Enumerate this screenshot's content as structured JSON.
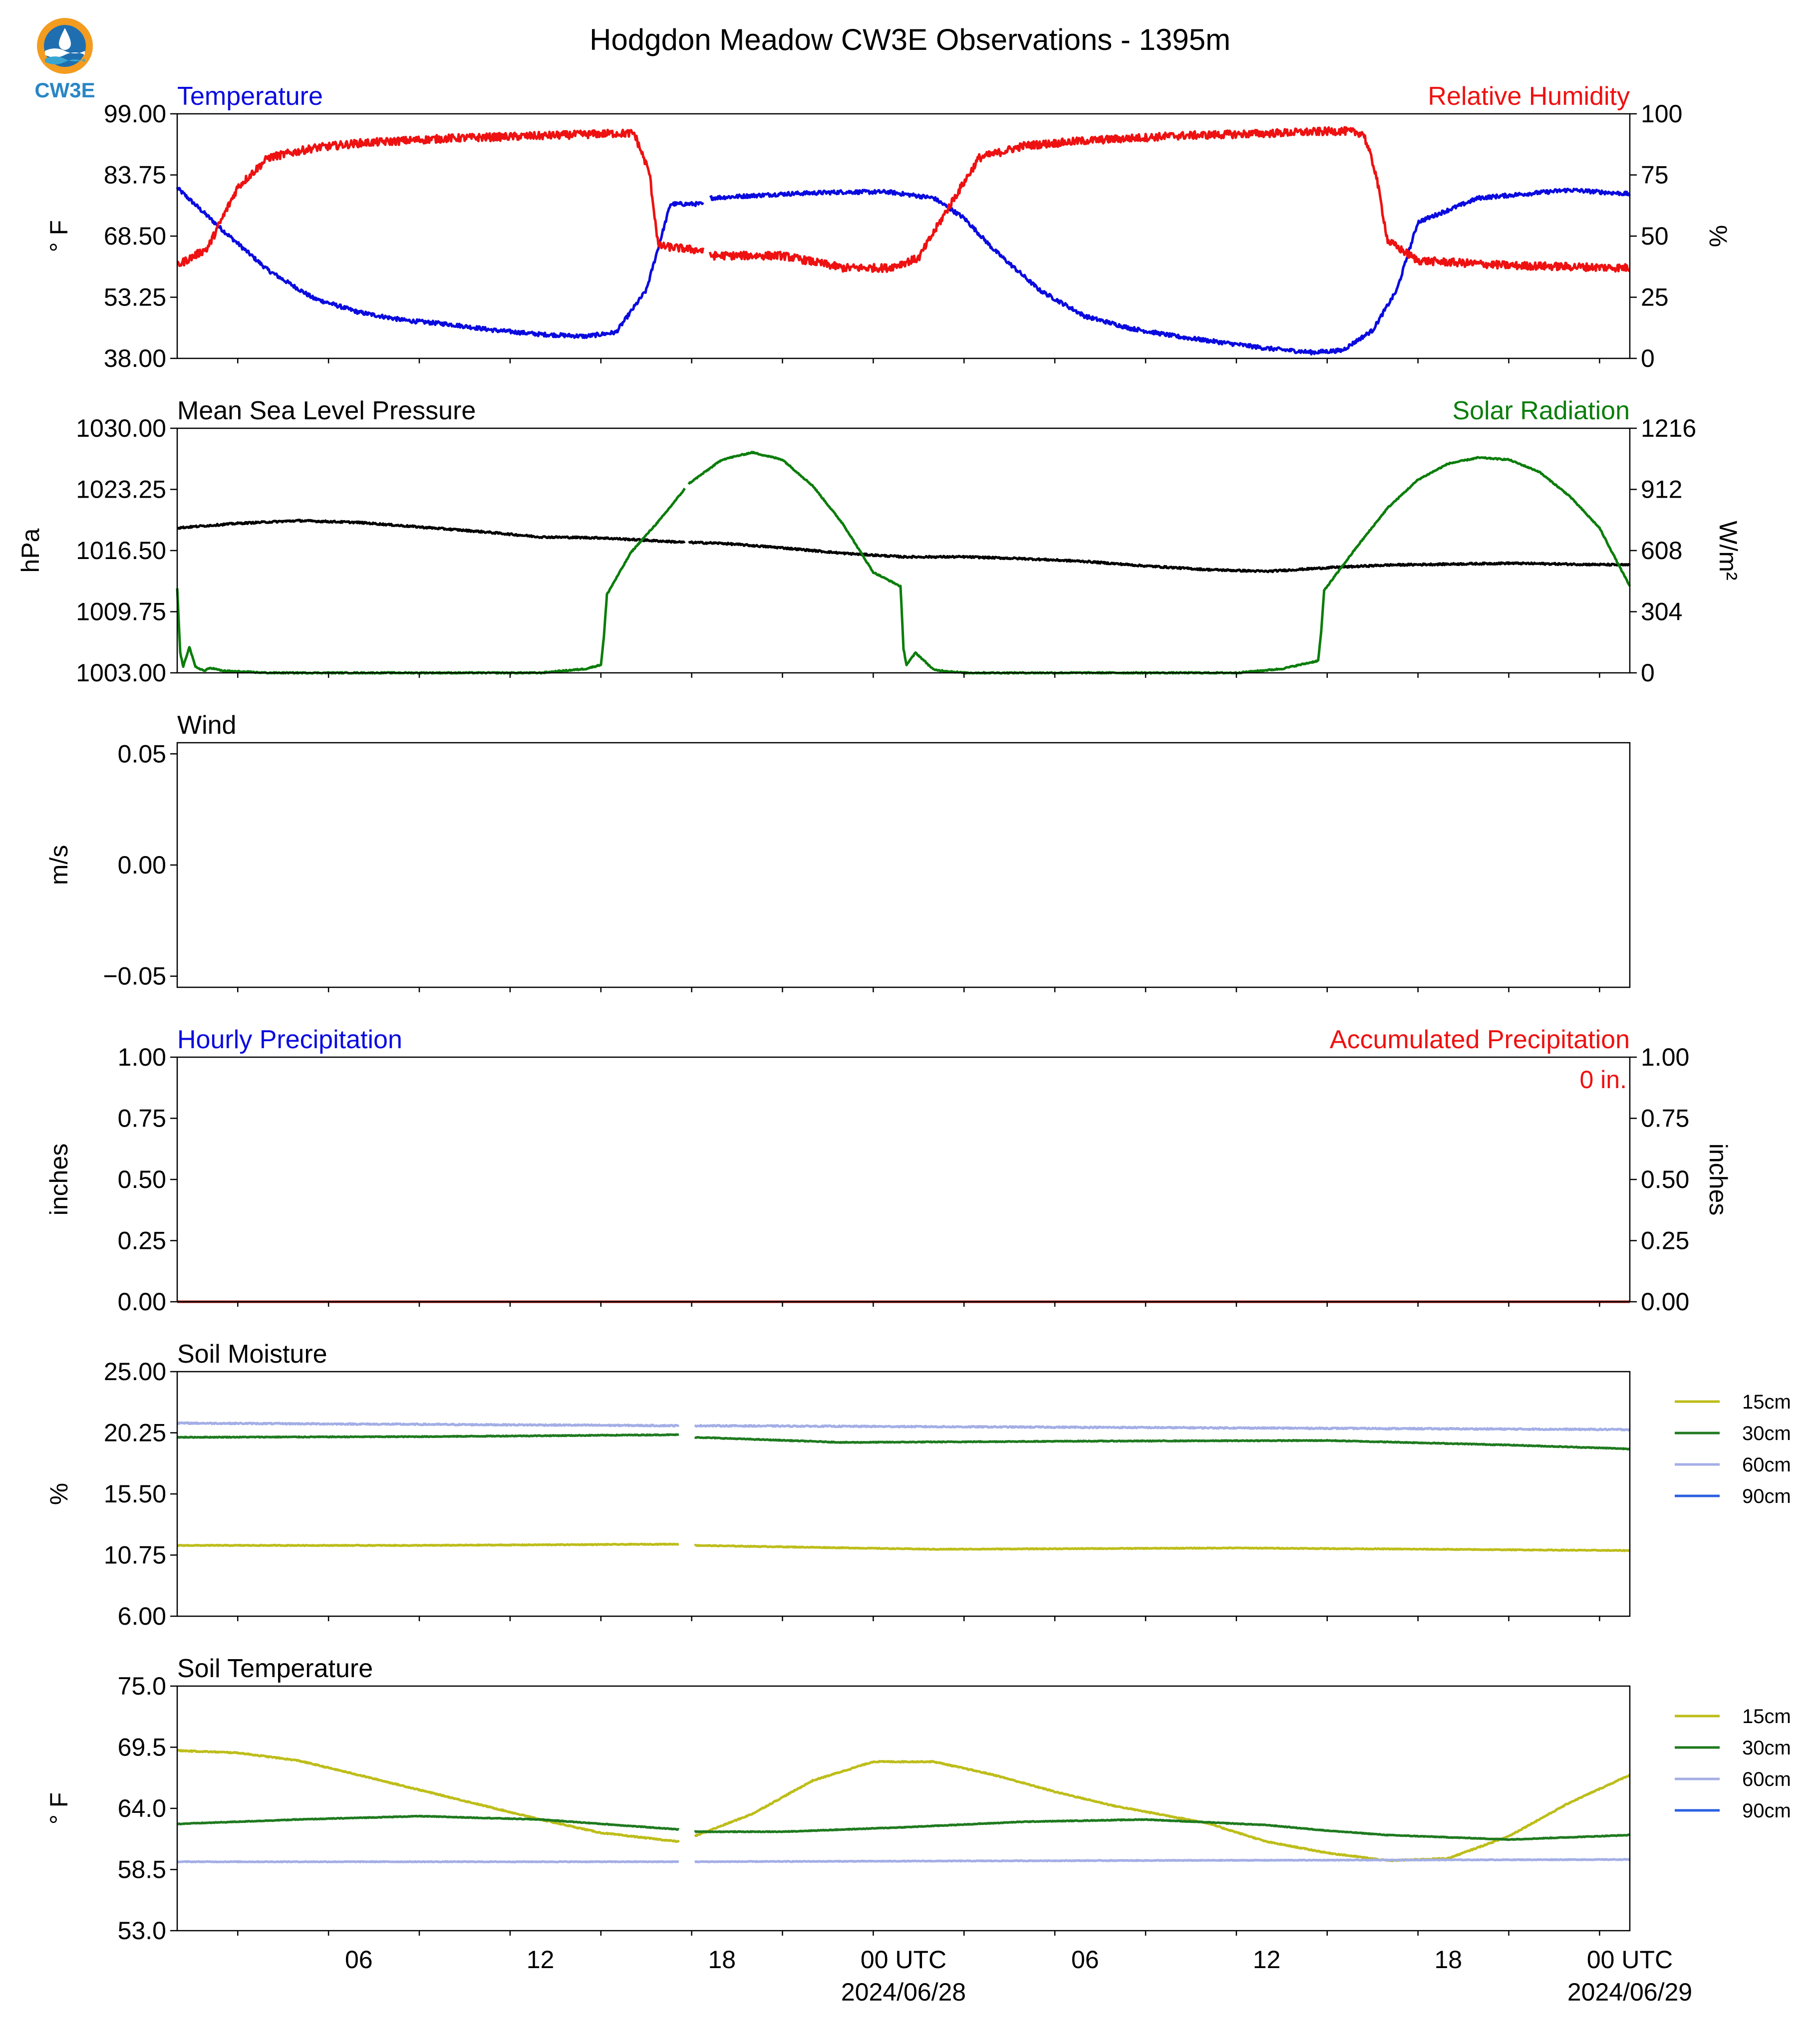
{
  "title": "Hodgdon Meadow CW3E Observations - 1395m",
  "logo": {
    "text": "CW3E",
    "colors": [
      "#f39c1f",
      "#1f6fb0",
      "#3aa6d0"
    ]
  },
  "x_axis": {
    "hours_total": 48.0,
    "hour_start_offset": 20.0,
    "tick_labels": [
      "06",
      "12",
      "18",
      "00 UTC",
      "06",
      "12",
      "18",
      "00 UTC"
    ],
    "tick_hours": [
      6,
      12,
      18,
      24,
      30,
      36,
      42,
      48
    ],
    "date_labels": [
      "2024/06/28",
      "2024/06/29"
    ],
    "date_label_hours": [
      24,
      48
    ]
  },
  "chart_data": [
    {
      "type": "line",
      "left_title": "Temperature",
      "right_title": "Relative Humidity",
      "ylabel": "° F",
      "ylabel_right": "%",
      "ylim": [
        38.0,
        99.0
      ],
      "ylim_right": [
        0,
        100
      ],
      "yticks": [
        "38.00",
        "53.25",
        "68.50",
        "83.75",
        "99.00"
      ],
      "yticks_right": [
        "0",
        "25",
        "50",
        "75",
        "100"
      ],
      "series": [
        {
          "axis": "left",
          "color": "#0a0adf",
          "noise": 0.5,
          "gap": [
            17.4,
            17.6
          ],
          "x": [
            0,
            1.5,
            3,
            4.5,
            6,
            7.5,
            9,
            10.5,
            12,
            13.5,
            14.5,
            15.5,
            16.3,
            17.4,
            17.6,
            20,
            22,
            23.5,
            25,
            26,
            27,
            28.5,
            30,
            31.5,
            33,
            34.5,
            36,
            37.5,
            38.5,
            39.5,
            40.3,
            41,
            43,
            46,
            48
          ],
          "y": [
            80.5,
            70,
            60,
            53,
            49.5,
            47.5,
            46.5,
            45,
            44,
            43.5,
            44.5,
            55,
            76.5,
            76.5,
            78,
            79,
            79.5,
            79.5,
            78,
            73,
            65,
            55,
            48.5,
            45.5,
            43.5,
            42,
            40.5,
            39.5,
            40,
            45,
            55,
            72,
            78,
            80,
            79
          ]
        },
        {
          "axis": "right",
          "color": "#ee1111",
          "noise": 1.6,
          "gap": [
            17.4,
            17.6
          ],
          "x": [
            0,
            1,
            2,
            3,
            4.5,
            6,
            9,
            12,
            14.5,
            15.1,
            15.6,
            15.9,
            17.4,
            17.6,
            20,
            22,
            23.5,
            24.5,
            25.5,
            26.5,
            28,
            30,
            33,
            36,
            38.5,
            39.2,
            39.6,
            40.0,
            41,
            44,
            48
          ],
          "y": [
            38,
            45,
            70,
            82,
            86,
            88,
            90,
            91,
            92,
            92,
            76,
            46,
            44,
            42,
            42,
            37,
            37,
            41,
            62,
            82,
            87,
            89,
            91,
            92,
            93,
            92,
            76,
            48,
            40,
            38,
            37
          ]
        }
      ]
    },
    {
      "type": "line",
      "left_title": "Mean Sea Level Pressure",
      "right_title": "Solar Radiation",
      "ylabel": "hPa",
      "ylabel_right": "W/m²",
      "ylim": [
        1003.0,
        1030.0
      ],
      "ylim_right": [
        0,
        1216
      ],
      "yticks": [
        "1003.00",
        "1009.75",
        "1016.50",
        "1023.25",
        "1030.00"
      ],
      "yticks_right": [
        "0",
        "304",
        "608",
        "912",
        "1216"
      ],
      "series": [
        {
          "axis": "left",
          "color": "#000000",
          "noise": 0.1,
          "gap": [
            16.8,
            16.9
          ],
          "x": [
            0,
            2,
            4,
            6,
            8,
            10,
            12,
            14,
            16.8,
            16.9,
            18,
            20,
            22,
            24,
            26,
            28,
            30,
            32,
            34,
            36,
            38,
            40,
            42,
            44,
            46,
            48
          ],
          "y": [
            1019,
            1019.5,
            1019.8,
            1019.6,
            1019.1,
            1018.6,
            1018,
            1017.9,
            1017.4,
            1017.4,
            1017.3,
            1016.8,
            1016.2,
            1015.8,
            1015.8,
            1015.6,
            1015.3,
            1014.8,
            1014.4,
            1014.2,
            1014.6,
            1014.9,
            1015,
            1015.1,
            1015,
            1014.9
          ]
        },
        {
          "axis": "right",
          "color": "#0b7d0b",
          "noise": 3,
          "gap": [
            16.8,
            16.9
          ],
          "x": [
            0,
            0.1,
            0.2,
            0.4,
            0.6,
            0.9,
            1.1,
            1.5,
            3,
            6,
            9,
            12,
            13.5,
            14,
            14.1,
            14.2,
            15,
            16,
            16.8,
            16.9,
            18,
            19,
            20,
            21,
            22,
            23,
            23.9,
            24,
            24.1,
            24.4,
            25,
            26,
            28,
            32,
            35,
            36.5,
            37.7,
            37.8,
            37.9,
            39,
            40,
            41,
            42,
            43,
            44,
            45,
            46,
            47,
            48
          ],
          "y": [
            420,
            100,
            30,
            130,
            30,
            10,
            25,
            10,
            0,
            0,
            0,
            0,
            20,
            40,
            180,
            390,
            600,
            770,
            920,
            940,
            1060,
            1096,
            1060,
            930,
            740,
            500,
            430,
            120,
            40,
            100,
            15,
            0,
            0,
            0,
            0,
            20,
            60,
            200,
            410,
            630,
            820,
            960,
            1040,
            1070,
            1060,
            1000,
            880,
            720,
            430
          ]
        }
      ]
    },
    {
      "type": "line",
      "left_title": "Wind",
      "right_title": "",
      "ylabel": "m/s",
      "ylim": [
        -0.055,
        0.055
      ],
      "yticks": [
        "−0.05",
        "0.00",
        "0.05"
      ],
      "ytick_values": [
        -0.05,
        0,
        0.05
      ],
      "series": []
    },
    {
      "type": "line",
      "left_title": "Hourly Precipitation",
      "right_title": "Accumulated Precipitation",
      "ylabel": "inches",
      "ylabel_right": "inches",
      "ylim": [
        0,
        1
      ],
      "ylim_right": [
        0,
        1
      ],
      "yticks": [
        "0.00",
        "0.25",
        "0.50",
        "0.75",
        "1.00"
      ],
      "yticks_right": [
        "0.00",
        "0.25",
        "0.50",
        "0.75",
        "1.00"
      ],
      "annotation": "0 in.",
      "series": [
        {
          "axis": "right",
          "color": "#aa1111",
          "x": [
            0,
            48
          ],
          "y": [
            0,
            0
          ]
        }
      ]
    },
    {
      "type": "line",
      "left_title": "Soil Moisture",
      "right_title": "",
      "ylabel": "%",
      "ylim": [
        6.0,
        25.0
      ],
      "yticks": [
        "6.00",
        "10.75",
        "15.50",
        "20.25",
        "25.00"
      ],
      "legend": [
        "15cm",
        "30cm",
        "60cm",
        "90cm"
      ],
      "legend_colors": [
        "#bdbd1a",
        "#1f7a1f",
        "#a3aee6",
        "#2a5fe0"
      ],
      "series": [
        {
          "name": "15cm",
          "color": "#bdbd1a",
          "noise": 0.03,
          "gap": [
            16.6,
            17.1
          ],
          "x": [
            0,
            8,
            16.6,
            17.1,
            25,
            35,
            48
          ],
          "y": [
            11.5,
            11.5,
            11.6,
            11.5,
            11.2,
            11.3,
            11.1
          ]
        },
        {
          "name": "30cm",
          "color": "#1f7a1f",
          "noise": 0.03,
          "gap": [
            16.6,
            17.1
          ],
          "x": [
            0,
            8,
            16.6,
            17.1,
            22,
            30,
            38,
            44,
            48
          ],
          "y": [
            19.9,
            19.95,
            20.1,
            19.9,
            19.5,
            19.6,
            19.65,
            19.3,
            19.0
          ]
        },
        {
          "name": "60cm",
          "color": "#a3aee6",
          "noise": 0.05,
          "gap": [
            16.6,
            17.1
          ],
          "x": [
            0,
            16.6,
            17.1,
            48
          ],
          "y": [
            21.0,
            20.8,
            20.8,
            20.5
          ]
        }
      ]
    },
    {
      "type": "line",
      "left_title": "Soil Temperature",
      "right_title": "",
      "ylabel": "° F",
      "ylim": [
        53.0,
        75.0
      ],
      "yticks": [
        "53.0",
        "58.5",
        "64.0",
        "69.5",
        "75.0"
      ],
      "legend": [
        "15cm",
        "30cm",
        "60cm",
        "90cm"
      ],
      "legend_colors": [
        "#bdbd1a",
        "#1f7a1f",
        "#a3aee6",
        "#2a5fe0"
      ],
      "series": [
        {
          "name": "15cm",
          "color": "#bdbd1a",
          "noise": 0.05,
          "gap": [
            16.6,
            17.1
          ],
          "x": [
            0,
            2,
            4,
            6,
            9,
            12,
            14,
            16.6,
            17.1,
            19,
            21,
            23,
            25,
            27,
            29,
            31,
            34,
            36,
            38,
            40,
            42,
            44,
            46,
            48
          ],
          "y": [
            69.2,
            69,
            68.3,
            67,
            65,
            63,
            61.8,
            61,
            61.5,
            63.5,
            66.5,
            68.2,
            68.2,
            67,
            65.5,
            64.2,
            62.7,
            61,
            60,
            59.3,
            59.5,
            61.5,
            64.5,
            67
          ]
        },
        {
          "name": "30cm",
          "color": "#1f7a1f",
          "noise": 0.03,
          "gap": [
            16.6,
            17.1
          ],
          "x": [
            0,
            4,
            8,
            12,
            16.6,
            17.1,
            20,
            24,
            28,
            32,
            36,
            38,
            40,
            44,
            48
          ],
          "y": [
            62.6,
            63,
            63.3,
            63,
            62.1,
            61.9,
            61.9,
            62.3,
            62.8,
            63,
            62.5,
            62,
            61.6,
            61.2,
            61.6
          ]
        },
        {
          "name": "60cm",
          "color": "#a3aee6",
          "noise": 0.03,
          "gap": [
            16.6,
            17.1
          ],
          "x": [
            0,
            16.6,
            17.1,
            30,
            48
          ],
          "y": [
            59.2,
            59.2,
            59.2,
            59.3,
            59.4
          ]
        }
      ]
    }
  ]
}
